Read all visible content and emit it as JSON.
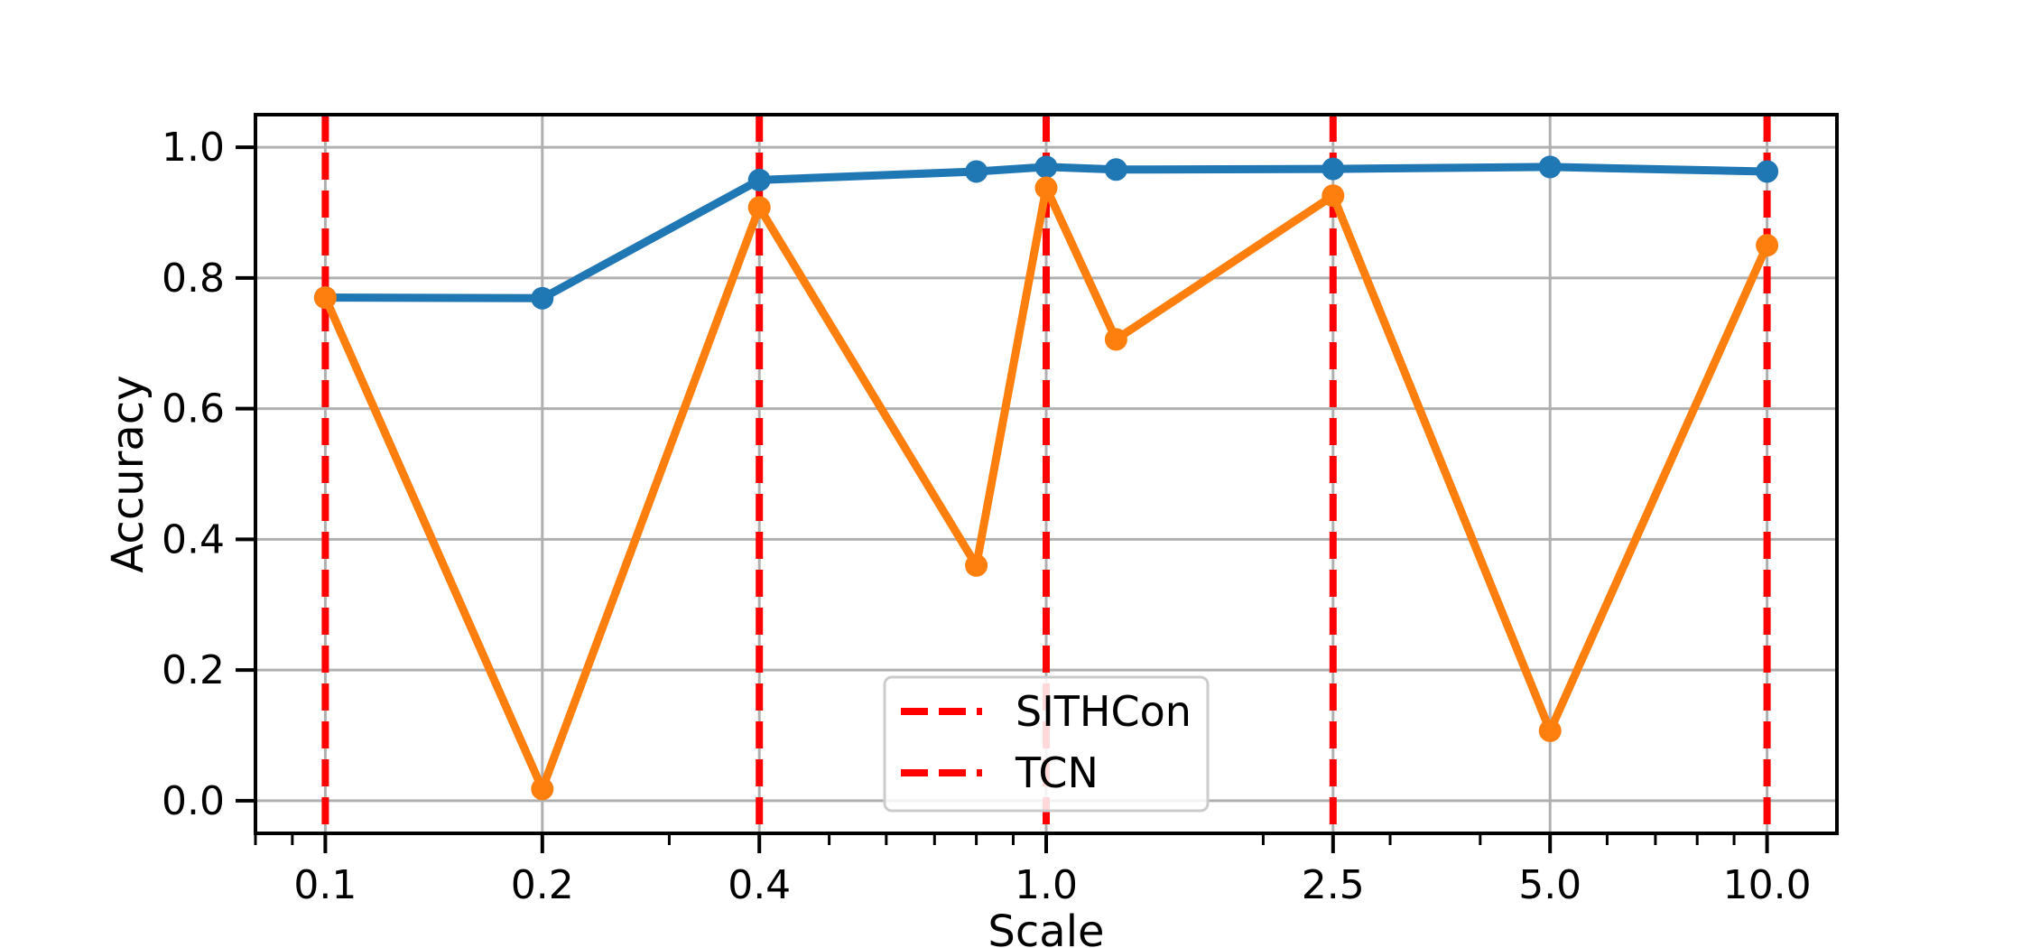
{
  "chart_data": {
    "type": "line",
    "xlabel": "Scale",
    "ylabel": "Accuracy",
    "x_scale": "log",
    "xlim": [
      0.08,
      12.5
    ],
    "ylim": [
      -0.05,
      1.05
    ],
    "grid": true,
    "x_ticks": [
      0.1,
      0.2,
      0.4,
      1.0,
      2.5,
      5.0,
      10.0
    ],
    "x_tick_labels": [
      "0.1",
      "0.2",
      "0.4",
      "1.0",
      "2.5",
      "5.0",
      "10.0"
    ],
    "y_ticks": [
      0.0,
      0.2,
      0.4,
      0.6,
      0.8,
      1.0
    ],
    "y_tick_labels": [
      "0.0",
      "0.2",
      "0.4",
      "0.6",
      "0.8",
      "1.0"
    ],
    "series": [
      {
        "color": "#1f77b4",
        "x": [
          0.1,
          0.2,
          0.4,
          0.8,
          1.0,
          1.25,
          2.5,
          5.0,
          10.0
        ],
        "y": [
          0.77,
          0.769,
          0.95,
          0.963,
          0.97,
          0.966,
          0.967,
          0.97,
          0.963
        ]
      },
      {
        "color": "#ff7f0e",
        "x": [
          0.1,
          0.2,
          0.4,
          0.8,
          1.0,
          1.25,
          2.5,
          5.0,
          10.0
        ],
        "y": [
          0.77,
          0.018,
          0.908,
          0.36,
          0.938,
          0.706,
          0.926,
          0.107,
          0.85
        ]
      }
    ],
    "vlines": {
      "color": "#ff0000",
      "style": "dashed",
      "x": [
        0.1,
        0.4,
        1.0,
        2.5,
        10.0
      ]
    },
    "legend": {
      "placement": "lower center",
      "entries": [
        {
          "label": "SITHCon",
          "color": "#ff0000",
          "style": "dashed"
        },
        {
          "label": "TCN",
          "color": "#ff0000",
          "style": "dashed"
        }
      ]
    }
  }
}
